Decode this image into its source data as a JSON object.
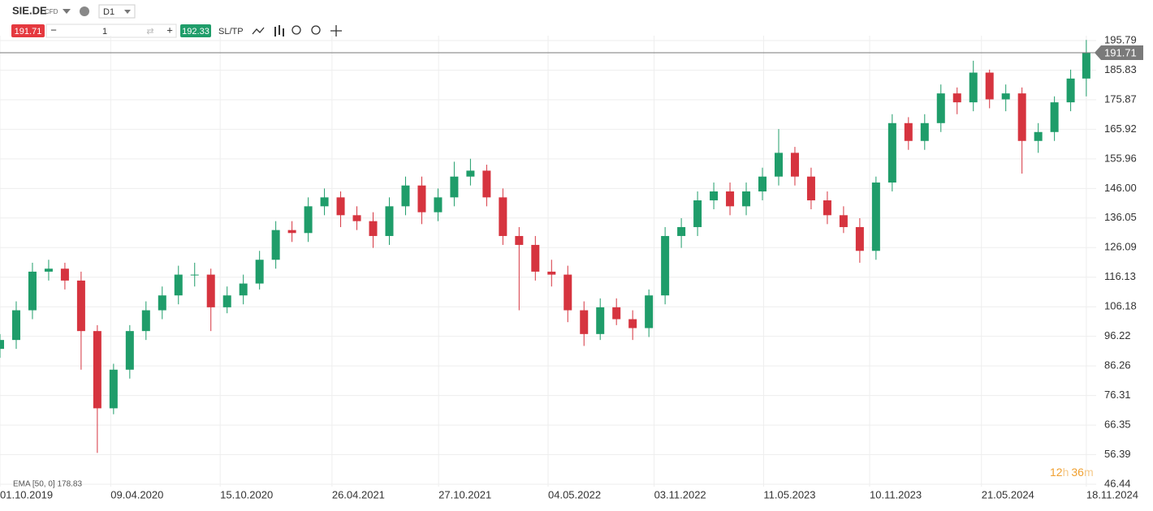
{
  "toolbar": {
    "symbol": "SIE.DE",
    "instrument": "CFD",
    "timeframe": "D1",
    "sell_price": "191.71",
    "volume": "1",
    "buy_price": "192.33",
    "sltp": "SL/TP"
  },
  "chart_data": {
    "type": "candlestick",
    "x": [
      "01.10.2019",
      "29.10.2019",
      "26.11.2019",
      "24.12.2019",
      "21.01.2020",
      "18.02.2020",
      "17.03.2020",
      "14.04.2020",
      "12.05.2020",
      "09.06.2020",
      "07.07.2020",
      "04.08.2020",
      "01.09.2020",
      "29.09.2020",
      "27.10.2020",
      "24.11.2020",
      "22.12.2020",
      "19.01.2021",
      "16.02.2021",
      "16.03.2021",
      "13.04.2021",
      "11.05.2021",
      "08.06.2021",
      "06.07.2021",
      "03.08.2021",
      "31.08.2021",
      "28.09.2021",
      "26.10.2021",
      "23.11.2021",
      "21.12.2021",
      "18.01.2022",
      "15.02.2022",
      "15.03.2022",
      "12.04.2022",
      "10.05.2022",
      "07.06.2022",
      "05.07.2022",
      "02.08.2022",
      "30.08.2022",
      "27.09.2022",
      "25.10.2022",
      "22.11.2022",
      "20.12.2022",
      "17.01.2023",
      "14.02.2023",
      "14.03.2023",
      "11.04.2023",
      "09.05.2023",
      "06.06.2023",
      "04.07.2023",
      "01.08.2023",
      "29.08.2023",
      "26.09.2023",
      "24.10.2023",
      "21.11.2023",
      "19.12.2023",
      "16.01.2024",
      "13.02.2024",
      "12.03.2024",
      "09.04.2024",
      "07.05.2024",
      "04.06.2024",
      "02.07.2024",
      "30.07.2024",
      "27.08.2024",
      "24.09.2024",
      "22.10.2024",
      "18.11.2024"
    ],
    "open": [
      92,
      95,
      105,
      118,
      119,
      115,
      98,
      72,
      85,
      98,
      105,
      110,
      117,
      117,
      106,
      110,
      114,
      122,
      132,
      131,
      140,
      143,
      137,
      135,
      130,
      140,
      147,
      138,
      143,
      150,
      152,
      143,
      130,
      127,
      118,
      117,
      105,
      97,
      106,
      102,
      99,
      110,
      130,
      133,
      142,
      145,
      140,
      145,
      150,
      158,
      150,
      142,
      137,
      133,
      125,
      148,
      168,
      162,
      168,
      178,
      175,
      185,
      176,
      178,
      162,
      165,
      175,
      183
    ],
    "high": [
      97,
      108,
      121,
      122,
      121,
      118,
      100,
      87,
      100,
      108,
      113,
      120,
      121,
      119,
      113,
      117,
      125,
      135,
      135,
      143,
      146,
      145,
      140,
      138,
      143,
      150,
      150,
      146,
      155,
      156,
      154,
      146,
      133,
      130,
      122,
      120,
      108,
      109,
      109,
      105,
      112,
      133,
      136,
      145,
      148,
      148,
      148,
      153,
      166,
      160,
      153,
      145,
      140,
      136,
      150,
      171,
      170,
      171,
      181,
      180,
      189,
      186,
      181,
      180,
      168,
      177,
      186,
      196
    ],
    "low": [
      89,
      92,
      102,
      115,
      112,
      85,
      57,
      70,
      82,
      95,
      102,
      107,
      113,
      98,
      104,
      107,
      112,
      119,
      128,
      128,
      137,
      133,
      132,
      126,
      127,
      137,
      134,
      135,
      140,
      147,
      140,
      127,
      105,
      115,
      113,
      101,
      93,
      95,
      100,
      95,
      96,
      107,
      126,
      130,
      139,
      137,
      137,
      142,
      147,
      147,
      139,
      134,
      131,
      121,
      122,
      145,
      159,
      159,
      165,
      171,
      172,
      173,
      172,
      151,
      158,
      162,
      172,
      177
    ],
    "close": [
      95,
      105,
      118,
      119,
      115,
      98,
      72,
      85,
      98,
      105,
      110,
      117,
      117,
      106,
      110,
      114,
      122,
      132,
      131,
      140,
      143,
      137,
      135,
      130,
      140,
      147,
      138,
      143,
      150,
      152,
      143,
      130,
      127,
      118,
      117,
      105,
      97,
      106,
      102,
      99,
      110,
      130,
      133,
      142,
      145,
      140,
      145,
      150,
      158,
      150,
      142,
      137,
      133,
      125,
      148,
      168,
      162,
      168,
      178,
      175,
      185,
      176,
      178,
      162,
      165,
      175,
      183,
      191.71
    ],
    "up_color": "#1f9d6a",
    "down_color": "#d6343f",
    "grid": true,
    "xlim": [
      "01.10.2019",
      "05.12.2024"
    ],
    "xticks": [
      "01.10.2019",
      "09.04.2020",
      "15.10.2020",
      "26.04.2021",
      "27.10.2021",
      "04.05.2022",
      "03.11.2022",
      "11.05.2023",
      "10.11.2023",
      "21.05.2024",
      "18.11.2024"
    ],
    "ylim": [
      46.44,
      195.79
    ],
    "yticks": [
      195.79,
      185.83,
      175.87,
      165.92,
      155.96,
      {
        "value": 146,
        "label": "146.00"
      },
      136.05,
      126.09,
      116.13,
      106.18,
      96.22,
      86.26,
      76.31,
      66.35,
      56.39,
      46.44
    ],
    "indicator_label": "EMA [50, 0] 178.83",
    "timer": [
      "12",
      "h",
      "36",
      "m"
    ]
  }
}
